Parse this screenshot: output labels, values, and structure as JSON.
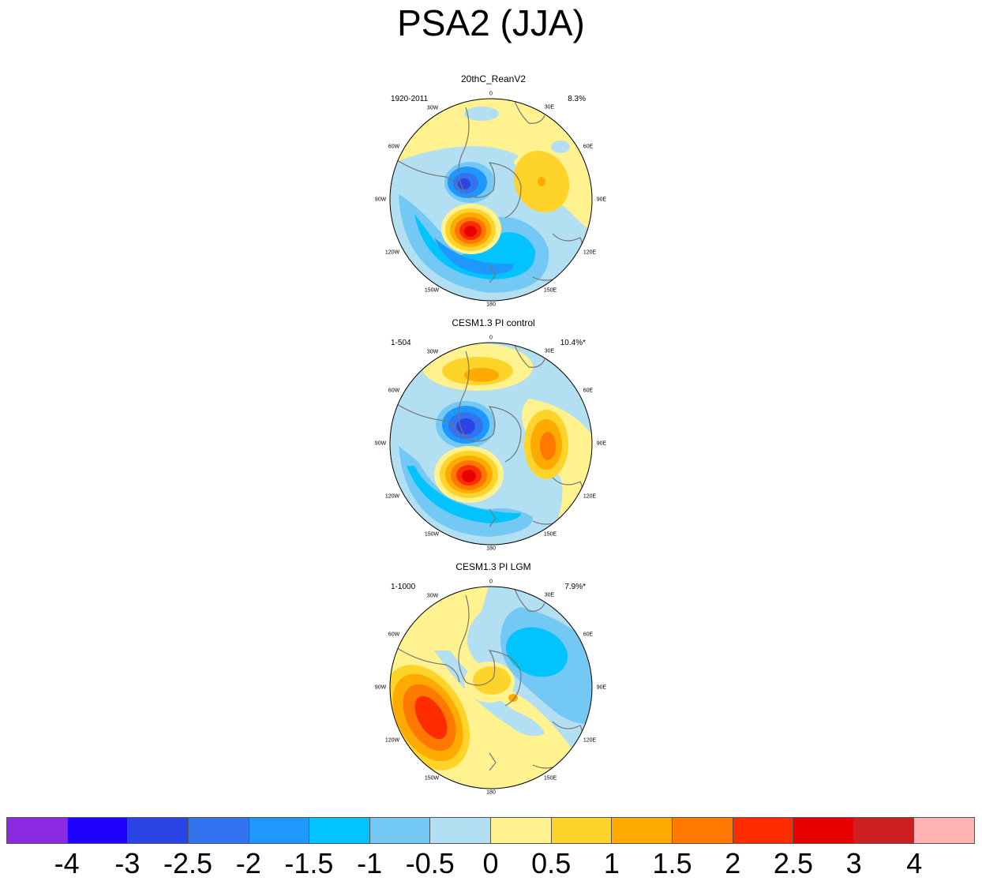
{
  "title": "PSA2 (JJA)",
  "panels": [
    {
      "name": "20thC_ReanV2",
      "years": "1920-2011",
      "pct": "8.3%"
    },
    {
      "name": "CESM1.3 PI control",
      "years": "1-504",
      "pct": "10.4%*"
    },
    {
      "name": "CESM1.3 PI LGM",
      "years": "1-1000",
      "pct": "7.9%*"
    }
  ],
  "longitudes": {
    "l0": "0",
    "l30e": "30E",
    "l60e": "60E",
    "l90e": "90E",
    "l120e": "120E",
    "l150e": "150E",
    "l180": "180",
    "l150w": "150W",
    "l120w": "120W",
    "l90w": "90W",
    "l60w": "60W",
    "l30w": "30W"
  },
  "colorbar": {
    "colors": [
      "#8a2be2",
      "#1e00ff",
      "#2a44e6",
      "#3373ef",
      "#1e97ff",
      "#00c3ff",
      "#73c8f4",
      "#b3dff2",
      "#fff28f",
      "#ffd42a",
      "#ffaa00",
      "#ff7800",
      "#ff2c00",
      "#e60000",
      "#cc1f1f",
      "#ffb3b3"
    ],
    "labels": [
      "-4",
      "-3",
      "-2.5",
      "-2",
      "-1.5",
      "-1",
      "-0.5",
      "0",
      "0.5",
      "1",
      "1.5",
      "2",
      "2.5",
      "3",
      "4"
    ]
  }
}
